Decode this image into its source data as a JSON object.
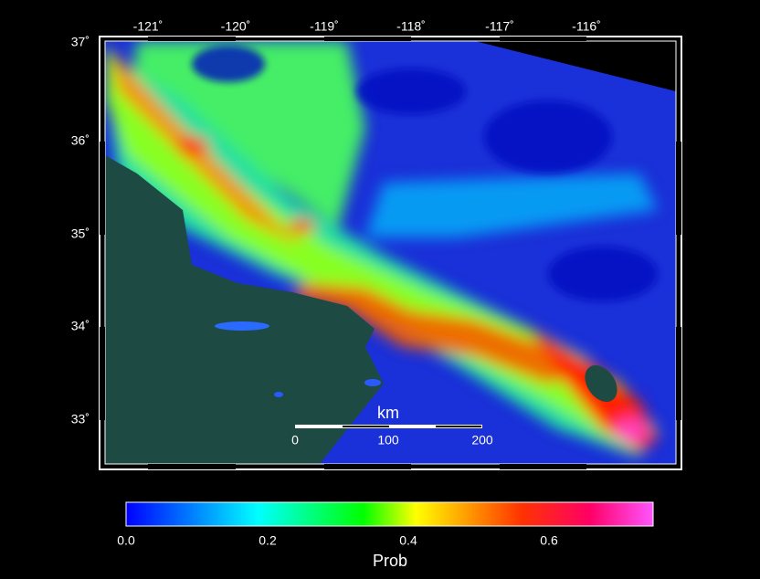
{
  "map": {
    "lon_ticks": [
      "-121˚",
      "-120˚",
      "-119˚",
      "-118˚",
      "-117˚",
      "-116˚"
    ],
    "lat_ticks": [
      "37˚",
      "36˚",
      "35˚",
      "34˚",
      "33˚"
    ],
    "scale_bar": {
      "unit": "km",
      "labels": [
        "0",
        "100",
        "200"
      ]
    },
    "colorbar": {
      "ticks": [
        "0.0",
        "0.2",
        "0.4",
        "0.6"
      ],
      "label": "Prob"
    }
  }
}
